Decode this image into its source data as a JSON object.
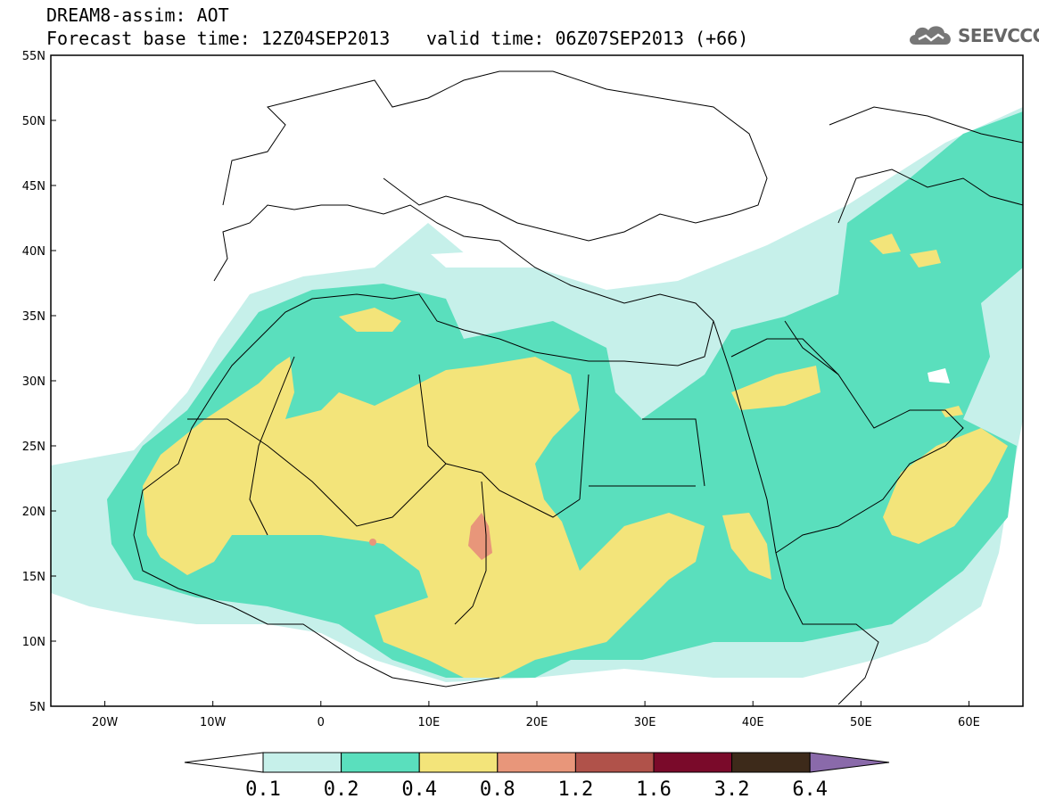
{
  "header": {
    "title": "DREAM8-assim: AOT",
    "base_time": "Forecast base time: 12Z04SEP2013",
    "valid_time": "valid time: 06Z07SEP2013 (+66)"
  },
  "logo": {
    "text": "SEEVCCC",
    "icon": "cloud-icon"
  },
  "map": {
    "lon_range": [
      -25,
      65
    ],
    "lat_range": [
      5,
      55
    ],
    "lat_ticks": [
      "5N",
      "10N",
      "15N",
      "20N",
      "25N",
      "30N",
      "35N",
      "40N",
      "45N",
      "50N",
      "55N"
    ],
    "lon_ticks": [
      "20W",
      "10W",
      "0",
      "10E",
      "20E",
      "30E",
      "40E",
      "50E",
      "60E"
    ]
  },
  "colorbar": {
    "labels": [
      "0.1",
      "0.2",
      "0.4",
      "0.8",
      "1.2",
      "1.6",
      "3.2",
      "6.4"
    ],
    "colors": [
      "#c6f0ea",
      "#5adfbd",
      "#f3e47a",
      "#e8967a",
      "#b0524a",
      "#7a0a2a",
      "#3d2a1a",
      "#8a6aaa"
    ]
  },
  "colors": {
    "class_01": "#c6f0ea",
    "class_02": "#5adfbd",
    "class_04": "#f3e47a",
    "class_08": "#e8967a",
    "border": "#000000"
  }
}
